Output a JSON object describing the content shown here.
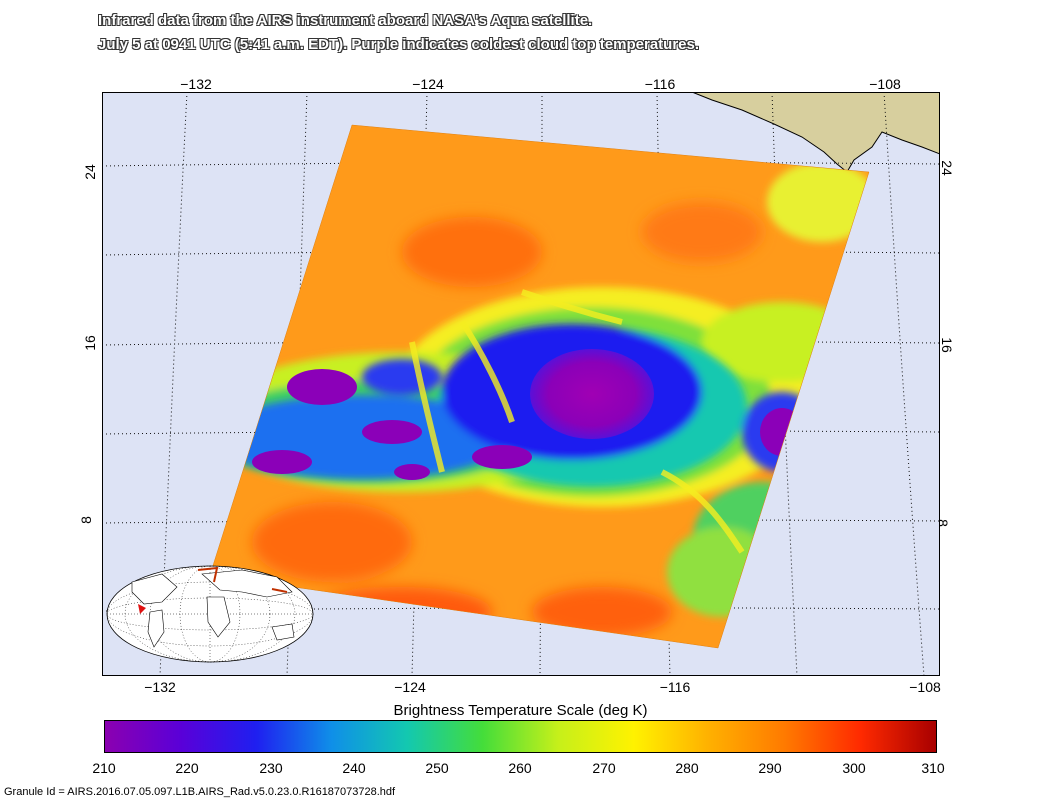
{
  "caption": {
    "line1": "Infrared data from the AIRS instrument aboard NASA's Aqua satellite.",
    "line2": "July 5 at 0941 UTC (5:41 a.m. EDT). Purple indicates coldest cloud top temperatures."
  },
  "map": {
    "longitude_ticks_top": [
      "−132",
      "−124",
      "−116",
      "−108"
    ],
    "longitude_ticks_bottom": [
      "−132",
      "−124",
      "−116",
      "−108"
    ],
    "latitude_ticks_left": [
      "24",
      "16",
      "8"
    ],
    "latitude_ticks_right": [
      "24",
      "16",
      "8"
    ],
    "colors": {
      "ocean": "#dde3f5",
      "land": "#d7cf9e",
      "grid": "#111111"
    },
    "inset": "world-globe-inset"
  },
  "colorbar": {
    "title": "Brightness Temperature Scale (deg K)",
    "labels": [
      "210",
      "220",
      "230",
      "240",
      "250",
      "260",
      "270",
      "280",
      "290",
      "300",
      "310"
    ],
    "gradient_colors": [
      "#8b00b0",
      "#5a00d8",
      "#1f1ff0",
      "#0f8fe8",
      "#13c8b0",
      "#44dd3a",
      "#c6f01a",
      "#fff200",
      "#ffb000",
      "#ff7a00",
      "#ff2a00",
      "#a80000"
    ]
  },
  "granule": "Granule Id = AIRS.2016.07.05.097.L1B.AIRS_Rad.v5.0.23.0.R16187073728.hdf"
}
